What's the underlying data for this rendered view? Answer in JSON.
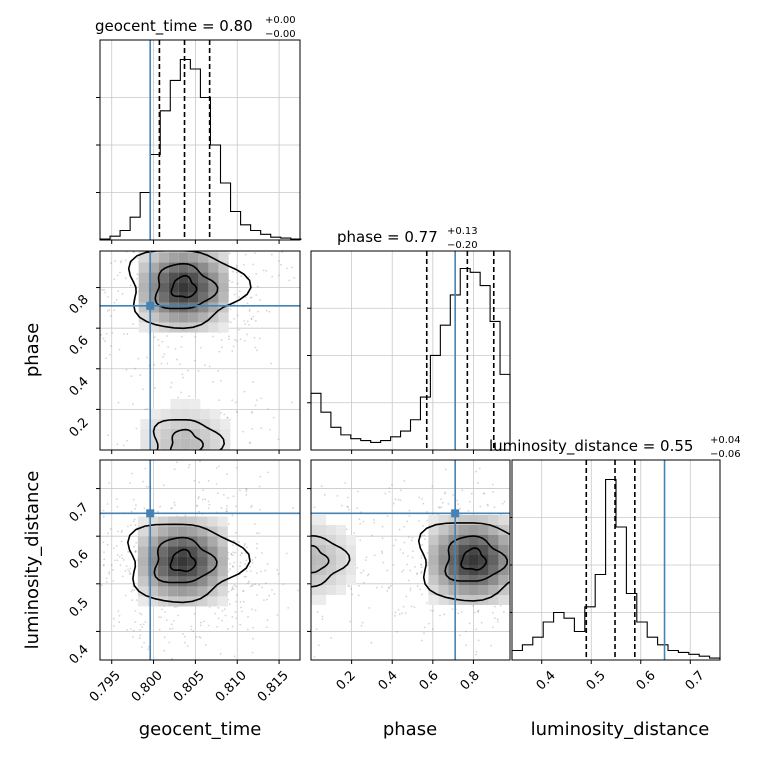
{
  "figure": {
    "title_gt_main": "geocent_time = 0.80",
    "title_gt_sup": "+0.00",
    "title_gt_sub": "−0.00",
    "title_ph_main": "phase = 0.77",
    "title_ph_sup": "+0.13",
    "title_ph_sub": "−0.20",
    "title_ld_main": "luminosity_distance = 0.55",
    "title_ld_sup": "+0.04",
    "title_ld_sub": "−0.06",
    "xlabel_gt": "geocent_time",
    "xlabel_ph": "phase",
    "xlabel_ld": "luminosity_distance",
    "ylabel_ph": "phase",
    "ylabel_ld": "luminosity_distance",
    "ticks_gt": [
      "0.795",
      "0.800",
      "0.805",
      "0.810",
      "0.815"
    ],
    "ticks_ph": [
      "0.2",
      "0.4",
      "0.6",
      "0.8"
    ],
    "ticks_ld": [
      "0.4",
      "0.5",
      "0.6",
      "0.7"
    ]
  },
  "chart_data": {
    "type": "corner",
    "parameters": [
      "geocent_time",
      "phase",
      "luminosity_distance"
    ],
    "ranges": {
      "geocent_time": [
        0.7936,
        0.8175
      ],
      "phase": [
        0.0,
        0.98
      ],
      "luminosity_distance": [
        0.34,
        0.76
      ]
    },
    "truths": {
      "geocent_time": 0.7996,
      "phase": 0.71,
      "luminosity_distance": 0.648
    },
    "quantiles": {
      "geocent_time": [
        0.8007,
        0.8037,
        0.8067
      ],
      "phase": [
        0.57,
        0.77,
        0.9
      ],
      "luminosity_distance": [
        0.49,
        0.548,
        0.588
      ]
    },
    "histograms": {
      "geocent_time": {
        "bins": [
          0.7936,
          0.7948,
          0.796,
          0.7972,
          0.7984,
          0.7996,
          0.8008,
          0.802,
          0.8032,
          0.8044,
          0.8056,
          0.8068,
          0.808,
          0.8092,
          0.8104,
          0.8116,
          0.8128,
          0.814,
          0.8152,
          0.8164,
          0.8176
        ],
        "counts": [
          0.005,
          0.02,
          0.05,
          0.12,
          0.25,
          0.45,
          0.68,
          0.84,
          0.95,
          0.9,
          0.75,
          0.5,
          0.3,
          0.15,
          0.08,
          0.05,
          0.03,
          0.015,
          0.01,
          0.005
        ]
      },
      "phase": {
        "bins": [
          0.0,
          0.049,
          0.098,
          0.147,
          0.196,
          0.245,
          0.294,
          0.343,
          0.392,
          0.441,
          0.49,
          0.539,
          0.588,
          0.637,
          0.686,
          0.735,
          0.784,
          0.833,
          0.882,
          0.931,
          0.98
        ],
        "counts": [
          0.3,
          0.2,
          0.12,
          0.08,
          0.06,
          0.05,
          0.04,
          0.05,
          0.07,
          0.1,
          0.16,
          0.28,
          0.5,
          0.66,
          0.82,
          0.96,
          0.94,
          0.87,
          0.68,
          0.4
        ]
      },
      "luminosity_distance": {
        "bins": [
          0.34,
          0.361,
          0.382,
          0.403,
          0.424,
          0.445,
          0.466,
          0.487,
          0.508,
          0.529,
          0.55,
          0.571,
          0.592,
          0.613,
          0.634,
          0.655,
          0.676,
          0.697,
          0.718,
          0.739,
          0.76
        ],
        "counts": [
          0.05,
          0.08,
          0.12,
          0.2,
          0.25,
          0.22,
          0.15,
          0.28,
          0.45,
          0.95,
          0.7,
          0.35,
          0.2,
          0.12,
          0.08,
          0.05,
          0.04,
          0.03,
          0.02,
          0.01
        ]
      }
    },
    "contour_levels": [
      0.39,
      0.86,
      0.99
    ],
    "modes_2d": {
      "geocent_time_vs_phase": [
        {
          "x": 0.8036,
          "y": 0.8,
          "weight": 1.0
        },
        {
          "x": 0.8038,
          "y": 0.03,
          "weight": 0.35
        }
      ],
      "geocent_time_vs_luminosity_distance": [
        {
          "x": 0.8035,
          "y": 0.547,
          "weight": 1.0
        }
      ],
      "phase_vs_luminosity_distance": [
        {
          "x": 0.8,
          "y": 0.55,
          "weight": 1.0
        },
        {
          "x": 0.0,
          "y": 0.55,
          "weight": 0.35
        }
      ]
    },
    "grid": true,
    "colors": {
      "truth": "#4682b4",
      "histogram": "#000000",
      "quantile": "#000000",
      "contour": "#000000",
      "grid": "#c8c8c8",
      "scatter": "#888888"
    }
  }
}
